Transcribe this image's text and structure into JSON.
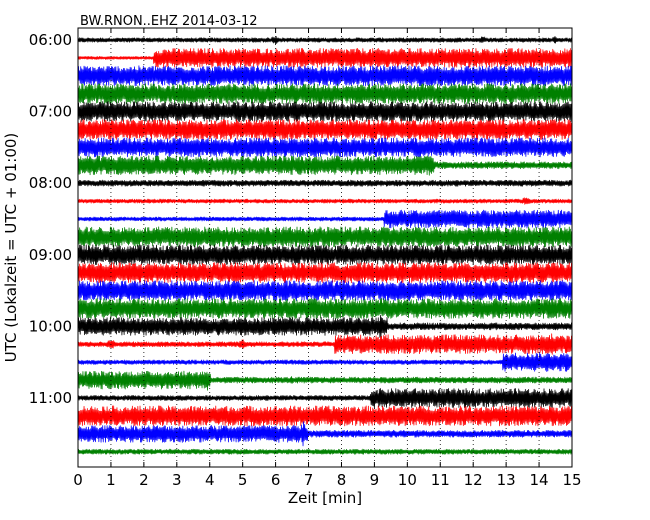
{
  "chart_data": {
    "type": "line",
    "title": "BW.RNON..EHZ 2014-03-12",
    "xlabel": "Zeit  [min]",
    "ylabel": "UTC (Lokalzeit = UTC + 01:00)",
    "xlim": [
      0,
      15
    ],
    "x_ticks": [
      0,
      1,
      2,
      3,
      4,
      5,
      6,
      7,
      8,
      9,
      10,
      11,
      12,
      13,
      14,
      15
    ],
    "y_tick_labels": [
      "06:00",
      "07:00",
      "08:00",
      "09:00",
      "10:00",
      "11:00"
    ],
    "grid": "vertical-dotted",
    "colors": [
      "#000000",
      "#ff0000",
      "#0000ff",
      "#008000"
    ],
    "trace_interval_minutes": 15,
    "traces": [
      {
        "start": "06:00",
        "color": "#000000",
        "segments": [
          [
            0,
            15,
            0.22
          ]
        ],
        "events": [
          [
            6.0,
            0.5
          ],
          [
            12.3,
            0.4
          ],
          [
            14.5,
            0.4
          ]
        ]
      },
      {
        "start": "06:15",
        "color": "#ff0000",
        "segments": [
          [
            0,
            2.3,
            0.15
          ],
          [
            2.3,
            15,
            0.95
          ]
        ],
        "events": []
      },
      {
        "start": "06:30",
        "color": "#0000ff",
        "segments": [
          [
            0,
            15,
            1.0
          ]
        ],
        "events": []
      },
      {
        "start": "06:45",
        "color": "#008000",
        "segments": [
          [
            0,
            15,
            1.0
          ]
        ],
        "events": []
      },
      {
        "start": "07:00",
        "color": "#000000",
        "segments": [
          [
            0,
            15,
            1.0
          ]
        ],
        "events": []
      },
      {
        "start": "07:15",
        "color": "#ff0000",
        "segments": [
          [
            0,
            15,
            1.0
          ]
        ],
        "events": []
      },
      {
        "start": "07:30",
        "color": "#0000ff",
        "segments": [
          [
            0,
            15,
            0.95
          ]
        ],
        "events": [
          [
            0.6,
            1.1
          ]
        ]
      },
      {
        "start": "07:45",
        "color": "#008000",
        "segments": [
          [
            0,
            10.8,
            0.95
          ],
          [
            10.8,
            15,
            0.35
          ]
        ],
        "events": [
          [
            10.7,
            1.3
          ]
        ]
      },
      {
        "start": "08:00",
        "color": "#000000",
        "segments": [
          [
            0,
            15,
            0.3
          ]
        ],
        "events": []
      },
      {
        "start": "08:15",
        "color": "#ff0000",
        "segments": [
          [
            0,
            15,
            0.2
          ]
        ],
        "events": [
          [
            13.6,
            0.45
          ]
        ]
      },
      {
        "start": "08:30",
        "color": "#0000ff",
        "segments": [
          [
            0,
            9.3,
            0.2
          ],
          [
            9.3,
            15,
            0.9
          ]
        ],
        "events": []
      },
      {
        "start": "08:45",
        "color": "#008000",
        "segments": [
          [
            0,
            15,
            1.0
          ]
        ],
        "events": []
      },
      {
        "start": "09:00",
        "color": "#000000",
        "segments": [
          [
            0,
            15,
            1.0
          ]
        ],
        "events": []
      },
      {
        "start": "09:15",
        "color": "#ff0000",
        "segments": [
          [
            0,
            15,
            1.0
          ]
        ],
        "events": []
      },
      {
        "start": "09:30",
        "color": "#0000ff",
        "segments": [
          [
            0,
            15,
            1.0
          ]
        ],
        "events": []
      },
      {
        "start": "09:45",
        "color": "#008000",
        "segments": [
          [
            0,
            15,
            1.0
          ]
        ],
        "events": []
      },
      {
        "start": "10:00",
        "color": "#000000",
        "segments": [
          [
            0,
            9.4,
            0.9
          ],
          [
            9.4,
            15,
            0.35
          ]
        ],
        "events": [
          [
            9.2,
            1.3
          ]
        ]
      },
      {
        "start": "10:15",
        "color": "#ff0000",
        "segments": [
          [
            0,
            7.8,
            0.25
          ],
          [
            7.8,
            15,
            0.95
          ]
        ],
        "events": [
          [
            1.0,
            0.6
          ],
          [
            5.0,
            0.5
          ],
          [
            14.4,
            1.3
          ]
        ]
      },
      {
        "start": "10:30",
        "color": "#0000ff",
        "segments": [
          [
            0,
            12.9,
            0.22
          ],
          [
            12.9,
            15,
            0.95
          ]
        ],
        "events": []
      },
      {
        "start": "10:45",
        "color": "#008000",
        "segments": [
          [
            0,
            4.0,
            0.9
          ],
          [
            4.0,
            15,
            0.3
          ]
        ],
        "events": [
          [
            3.9,
            1.3
          ],
          [
            6.5,
            0.4
          ]
        ]
      },
      {
        "start": "11:00",
        "color": "#000000",
        "segments": [
          [
            0,
            9.0,
            0.25
          ],
          [
            9.0,
            15,
            0.95
          ]
        ],
        "events": [
          [
            9.0,
            1.2
          ]
        ]
      },
      {
        "start": "11:15",
        "color": "#ff0000",
        "segments": [
          [
            0,
            15,
            1.0
          ]
        ],
        "events": []
      },
      {
        "start": "11:30",
        "color": "#0000ff",
        "segments": [
          [
            0,
            6.9,
            0.85
          ],
          [
            6.9,
            15,
            0.35
          ]
        ],
        "events": [
          [
            6.85,
            1.3
          ]
        ]
      },
      {
        "start": "11:45",
        "color": "#008000",
        "segments": [
          [
            0,
            15,
            0.25
          ]
        ],
        "events": []
      }
    ]
  }
}
